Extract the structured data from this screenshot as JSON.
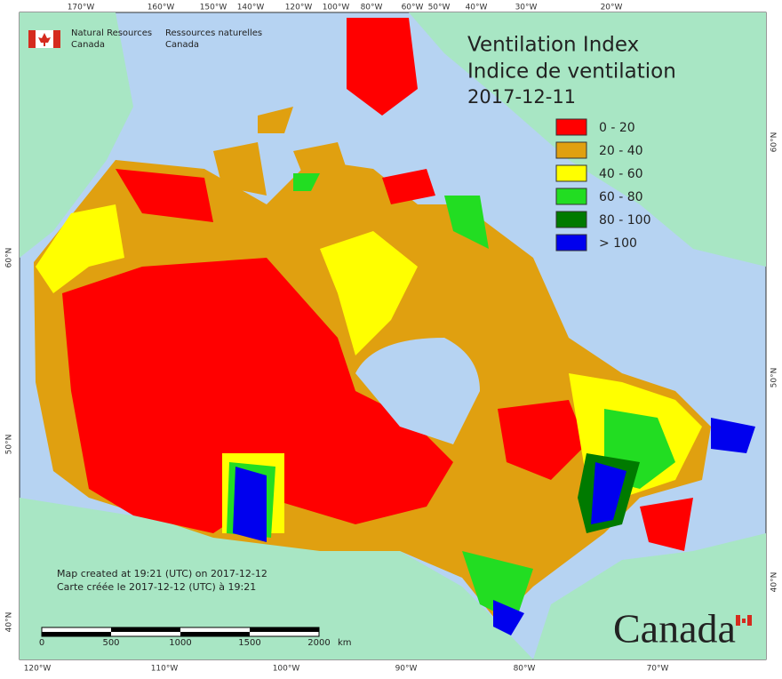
{
  "header": {
    "org_en_1": "Natural Resources",
    "org_en_2": "Canada",
    "org_fr_1": "Ressources naturelles",
    "org_fr_2": "Canada"
  },
  "title": {
    "line1": "Ventilation Index",
    "line2": "Indice de ventilation",
    "date": "2017-12-11"
  },
  "legend": [
    {
      "label": "0 - 20",
      "color": "#ff0000"
    },
    {
      "label": "20 - 40",
      "color": "#e0a010"
    },
    {
      "label": "40 - 60",
      "color": "#ffff00"
    },
    {
      "label": "60 - 80",
      "color": "#22dd22"
    },
    {
      "label": "80 - 100",
      "color": "#007a00"
    },
    {
      "label": "> 100",
      "color": "#0000ee"
    }
  ],
  "top_ticks": [
    "170°W",
    "160°W",
    "150°W",
    "140°W",
    "120°W",
    "100°W",
    "80°W",
    "60°W",
    "50°W",
    "40°W",
    "30°W",
    "20°W"
  ],
  "bottom_ticks": [
    "120°W",
    "110°W",
    "100°W",
    "90°W",
    "80°W",
    "70°W"
  ],
  "left_ticks": [
    "60°N",
    "50°N",
    "40°N"
  ],
  "right_ticks": [
    "60°N",
    "50°N",
    "40°N"
  ],
  "footnote": {
    "line1": "Map created at 19:21 (UTC) on 2017-12-12",
    "line2": "Carte créée le 2017-12-12 (UTC) à 19:21"
  },
  "scale_bar": {
    "labels": [
      "0",
      "500",
      "1000",
      "1500",
      "2000"
    ],
    "unit": "km"
  },
  "wordmark": "Canada"
}
